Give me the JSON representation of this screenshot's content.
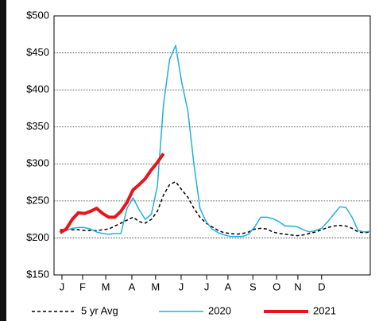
{
  "chart_data": {
    "type": "line",
    "x": [
      1,
      2,
      3,
      4,
      5,
      6,
      7,
      8,
      9,
      10,
      11,
      12,
      13,
      14,
      15,
      16,
      17,
      18,
      19,
      20,
      21,
      22,
      23,
      24,
      25,
      26,
      27,
      28,
      29,
      30,
      31,
      32,
      33,
      34,
      35,
      36,
      37,
      38,
      39,
      40,
      41,
      42,
      43,
      44,
      45,
      46,
      47,
      48,
      49,
      50,
      51,
      52
    ],
    "xlim": [
      0,
      52
    ],
    "xticks": [
      {
        "value": 1.3,
        "label": "J"
      },
      {
        "value": 4.7,
        "label": "F"
      },
      {
        "value": 8.5,
        "label": "M"
      },
      {
        "value": 12.8,
        "label": "A"
      },
      {
        "value": 16.7,
        "label": "M"
      },
      {
        "value": 20.9,
        "label": "J"
      },
      {
        "value": 25.1,
        "label": "J"
      },
      {
        "value": 28.6,
        "label": "A"
      },
      {
        "value": 32.7,
        "label": "S"
      },
      {
        "value": 36.6,
        "label": "O"
      },
      {
        "value": 40.1,
        "label": "N"
      },
      {
        "value": 44,
        "label": "D"
      }
    ],
    "ylim": [
      150,
      500
    ],
    "yticks": [
      {
        "value": 150,
        "label": "$150"
      },
      {
        "value": 200,
        "label": "$200"
      },
      {
        "value": 250,
        "label": "$250"
      },
      {
        "value": 300,
        "label": "$300"
      },
      {
        "value": 350,
        "label": "$350"
      },
      {
        "value": 400,
        "label": "$400"
      },
      {
        "value": 450,
        "label": "$450"
      },
      {
        "value": 500,
        "label": "$500"
      }
    ],
    "grid": true,
    "legend": "bottom",
    "series": [
      {
        "name": "5 yr Avg",
        "color": "#000000",
        "line_style": "dashed",
        "width": 1.5,
        "values": [
          211,
          211,
          211,
          211,
          210,
          210,
          210,
          211,
          212,
          216,
          220,
          224,
          228,
          222,
          220,
          225,
          236,
          258,
          272,
          276,
          265,
          255,
          240,
          228,
          220,
          215,
          210,
          207,
          206,
          205,
          206,
          208,
          212,
          213,
          212,
          208,
          206,
          205,
          204,
          203,
          204,
          206,
          208,
          211,
          214,
          216,
          217,
          216,
          213,
          208,
          207,
          208
        ]
      },
      {
        "name": "2020",
        "color": "#1fb0e0",
        "line_style": "solid",
        "width": 1.5,
        "values": [
          208,
          210,
          213,
          214,
          214,
          212,
          208,
          206,
          205,
          206,
          206,
          240,
          254,
          238,
          225,
          232,
          270,
          380,
          441,
          460,
          410,
          372,
          300,
          240,
          222,
          212,
          207,
          204,
          202,
          202,
          202,
          205,
          215,
          228,
          228,
          226,
          222,
          216,
          216,
          215,
          211,
          208,
          210,
          213,
          222,
          232,
          242,
          241,
          228,
          210,
          208,
          209
        ]
      },
      {
        "name": "2021",
        "color": "#e8141c",
        "line_style": "solid",
        "width": 4,
        "values": [
          207,
          212,
          225,
          234,
          233,
          236,
          240,
          233,
          228,
          228,
          236,
          248,
          265,
          272,
          280,
          292,
          302,
          314,
          null,
          null,
          null,
          null,
          null,
          null,
          null,
          null,
          null,
          null,
          null,
          null,
          null,
          null,
          null,
          null,
          null,
          null,
          null,
          null,
          null,
          null,
          null,
          null,
          null,
          null,
          null,
          null,
          null,
          null,
          null,
          null,
          null,
          null
        ]
      }
    ]
  }
}
